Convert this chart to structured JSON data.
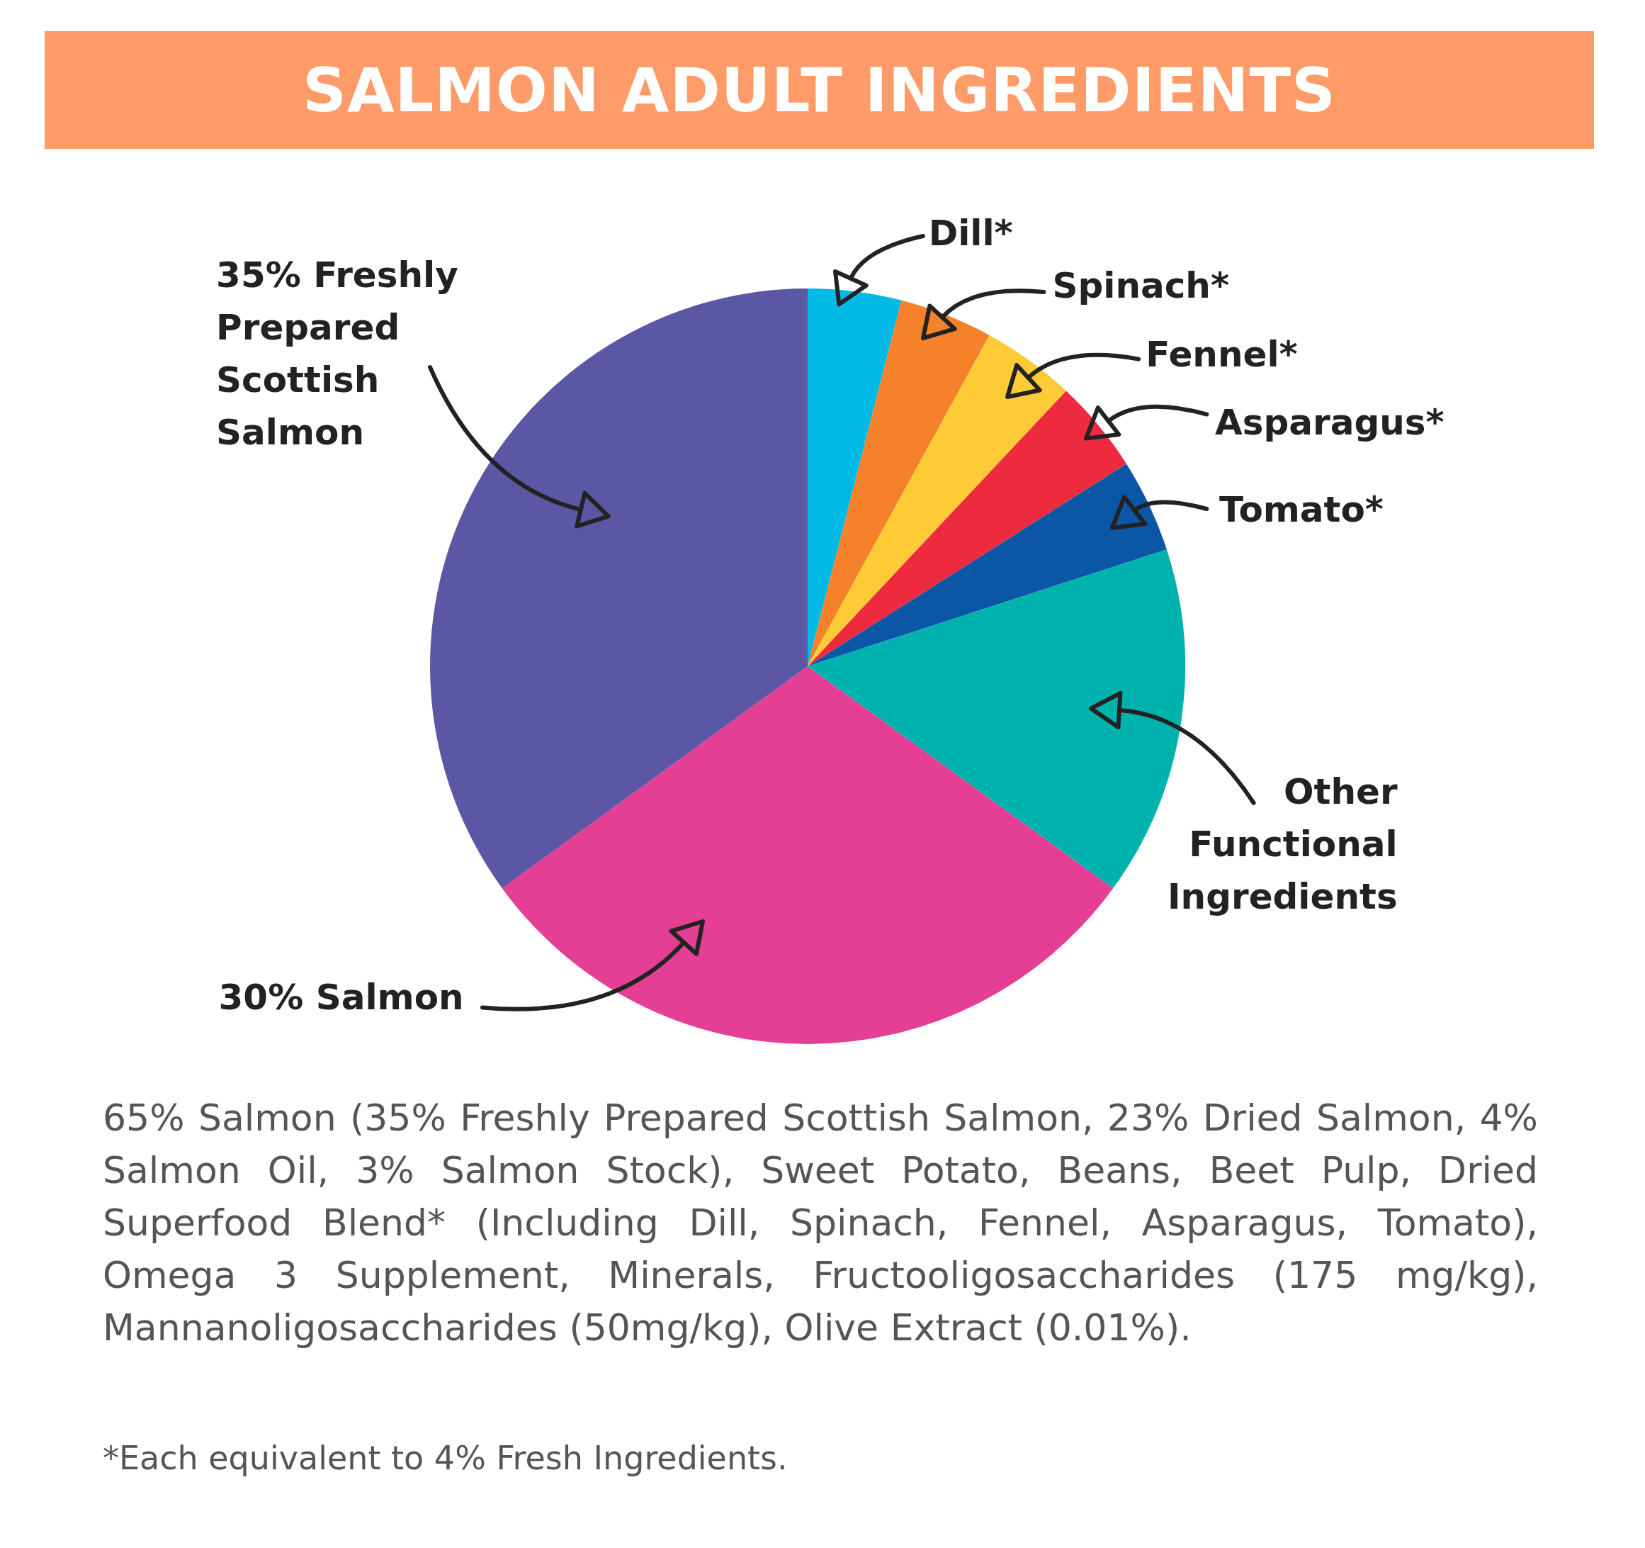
{
  "chart_data": {
    "type": "pie",
    "title": "SALMON ADULT INGREDIENTS",
    "categories": [
      "Dill*",
      "Spinach*",
      "Fennel*",
      "Asparagus*",
      "Tomato*",
      "Other Functional Ingredients",
      "30% Salmon",
      "35% Freshly Prepared Scottish Salmon"
    ],
    "values": [
      4,
      4,
      4,
      4,
      4,
      15,
      30,
      35
    ],
    "colors": [
      "#00b9e4",
      "#f5822a",
      "#fecb36",
      "#ee2a3f",
      "#0b57a6",
      "#00b2ae",
      "#e43f94",
      "#5c57a5"
    ],
    "legend": false,
    "annotations": [
      "65% Salmon (35% Freshly Prepared Scottish Salmon, 23% Dried Salmon, 4% Salmon Oil, 3% Salmon Stock), Sweet Potato, Beans, Beet Pulp, Dried Superfood Blend* (Including Dill, Spinach, Fennel, Asparagus, Tomato), Omega 3 Supplement, Minerals, Fructooligosaccharides (175 mg/kg), Mannanoligosaccharides (50mg/kg), Olive Extract (0.01%).",
      "*Each equivalent to 4% Fresh Ingredients."
    ]
  }
}
